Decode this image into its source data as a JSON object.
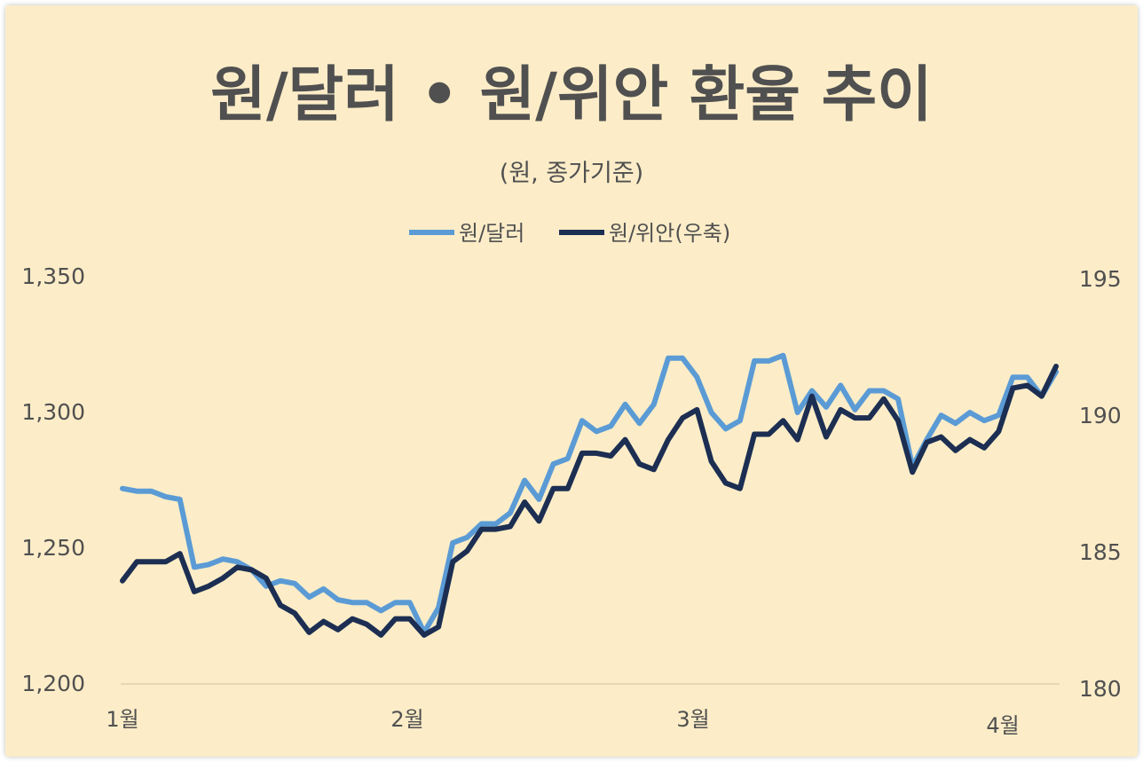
{
  "chart_data": {
    "type": "line",
    "title": "원/달러 • 원/위안 환율 추이",
    "subtitle": "(원, 종가기준)",
    "x_tick_labels": [
      "1월",
      "2월",
      "3월",
      "4월"
    ],
    "y_left": {
      "ylim": [
        1200,
        1350
      ],
      "ticks": [
        "1,200",
        "1,250",
        "1,300",
        "1,350"
      ]
    },
    "y_right": {
      "ylim": [
        180,
        195
      ],
      "ticks": [
        "180",
        "185",
        "190",
        "195"
      ]
    },
    "legend_position": "top-center",
    "grid": false,
    "series": [
      {
        "name": "원/달러",
        "axis": "left",
        "color": "#5b9bd5",
        "values": [
          1272,
          1271,
          1271,
          1269,
          1268,
          1243,
          1244,
          1246,
          1245,
          1242,
          1236,
          1238,
          1237,
          1232,
          1235,
          1231,
          1230,
          1230,
          1227,
          1230,
          1230,
          1219,
          1228,
          1252,
          1254,
          1259,
          1259,
          1263,
          1275,
          1268,
          1281,
          1283,
          1297,
          1293,
          1295,
          1303,
          1296,
          1303,
          1320,
          1320,
          1313,
          1300,
          1294,
          1297,
          1319,
          1319,
          1321,
          1300,
          1308,
          1302,
          1310,
          1301,
          1308,
          1308,
          1305,
          1280,
          1290,
          1299,
          1296,
          1300,
          1297,
          1299,
          1313,
          1313,
          1306,
          1315
        ]
      },
      {
        "name": "원/위안(우축)",
        "axis": "right",
        "color": "#1c2e52",
        "values": [
          183.8,
          184.5,
          184.5,
          184.5,
          184.8,
          183.4,
          183.6,
          183.9,
          184.3,
          184.2,
          183.9,
          182.9,
          182.6,
          181.9,
          182.3,
          182.0,
          182.4,
          182.2,
          181.8,
          182.4,
          182.4,
          181.8,
          182.1,
          184.5,
          184.9,
          185.7,
          185.7,
          185.8,
          186.7,
          186.0,
          187.2,
          187.2,
          188.5,
          188.5,
          188.4,
          189.0,
          188.1,
          187.9,
          189.0,
          189.8,
          190.1,
          188.2,
          187.4,
          187.2,
          189.2,
          189.2,
          189.7,
          189.0,
          190.6,
          189.1,
          190.1,
          189.8,
          189.8,
          190.5,
          189.7,
          187.8,
          188.9,
          189.1,
          188.6,
          189.0,
          188.7,
          189.3,
          190.9,
          191.0,
          190.6,
          191.7
        ]
      }
    ]
  }
}
